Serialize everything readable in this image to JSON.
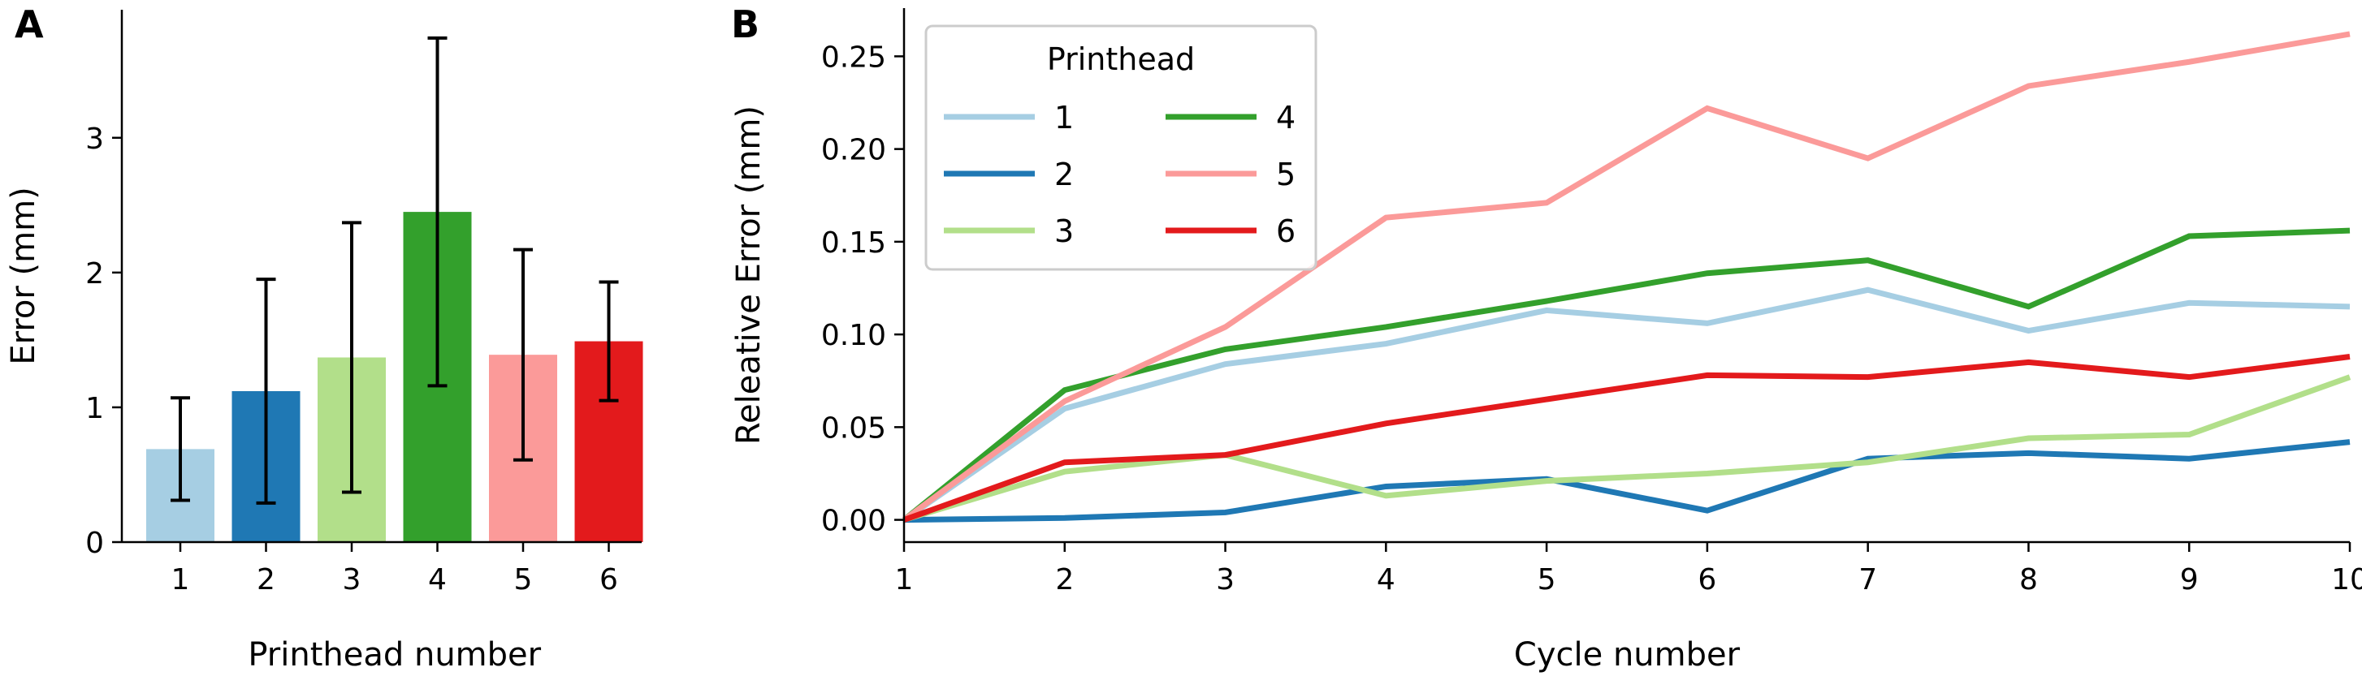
{
  "chart_data": [
    {
      "panel": "A",
      "type": "bar",
      "xlabel": "Printhead number",
      "ylabel": "Error (mm)",
      "categories": [
        "1",
        "2",
        "3",
        "4",
        "5",
        "6"
      ],
      "values": [
        0.69,
        1.12,
        1.37,
        2.45,
        1.39,
        1.49
      ],
      "error": [
        0.38,
        0.83,
        1.0,
        1.29,
        0.78,
        0.44
      ],
      "colors": [
        "#a6cee3",
        "#1f78b4",
        "#b2df8a",
        "#33a02c",
        "#fb9a99",
        "#e31a1c"
      ],
      "ylim": [
        0,
        3.95
      ],
      "yticks": [
        "0",
        "1",
        "2",
        "3"
      ],
      "grid": false
    },
    {
      "panel": "B",
      "type": "line",
      "xlabel": "Cycle number",
      "ylabel": "Releative Error (mm)",
      "x": [
        1,
        2,
        3,
        4,
        5,
        6,
        7,
        8,
        9,
        10
      ],
      "xticks": [
        "1",
        "2",
        "3",
        "4",
        "5",
        "6",
        "7",
        "8",
        "9",
        "10"
      ],
      "ylim": [
        -0.012,
        0.276
      ],
      "yticks": [
        "0.00",
        "0.05",
        "0.10",
        "0.15",
        "0.20",
        "0.25"
      ],
      "grid": false,
      "legend": {
        "title": "Printhead",
        "placement": "top-left",
        "columns": 2
      },
      "series": [
        {
          "name": "1",
          "color": "#a6cee3",
          "values": [
            0,
            0.06,
            0.084,
            0.095,
            0.113,
            0.106,
            0.124,
            0.102,
            0.117,
            0.115
          ]
        },
        {
          "name": "2",
          "color": "#1f78b4",
          "values": [
            0,
            0.001,
            0.004,
            0.018,
            0.022,
            0.005,
            0.033,
            0.036,
            0.033,
            0.042
          ]
        },
        {
          "name": "3",
          "color": "#b2df8a",
          "values": [
            0,
            0.026,
            0.035,
            0.013,
            0.021,
            0.025,
            0.031,
            0.044,
            0.046,
            0.077
          ]
        },
        {
          "name": "4",
          "color": "#33a02c",
          "values": [
            0,
            0.07,
            0.092,
            0.104,
            0.118,
            0.133,
            0.14,
            0.115,
            0.153,
            0.156
          ]
        },
        {
          "name": "5",
          "color": "#fb9a99",
          "values": [
            0,
            0.064,
            0.104,
            0.163,
            0.171,
            0.222,
            0.195,
            0.234,
            0.247,
            0.262
          ]
        },
        {
          "name": "6",
          "color": "#e31a1c",
          "values": [
            0,
            0.031,
            0.035,
            0.052,
            0.065,
            0.078,
            0.077,
            0.085,
            0.077,
            0.088
          ]
        }
      ]
    }
  ]
}
